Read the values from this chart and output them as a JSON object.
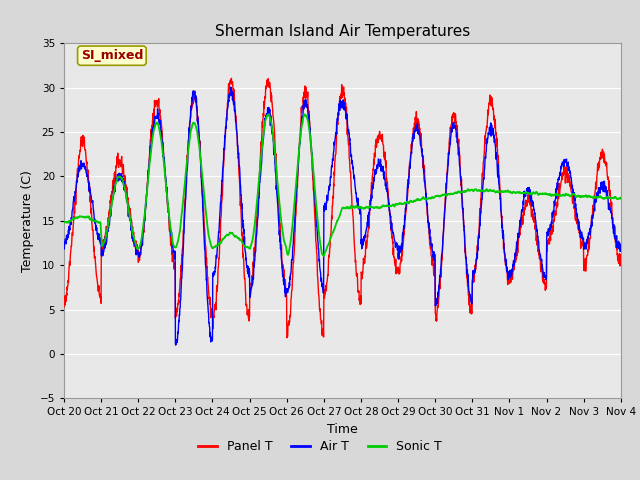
{
  "title": "Sherman Island Air Temperatures",
  "xlabel": "Time",
  "ylabel": "Temperature (C)",
  "ylim": [
    -5,
    35
  ],
  "xlim": [
    0,
    15
  ],
  "fig_bg_color": "#d8d8d8",
  "plot_bg_color": "#e8e8e8",
  "legend_bg_color": "#ffffff",
  "grid_color": "#ffffff",
  "panel_t_color": "#ff0000",
  "air_t_color": "#0000ff",
  "sonic_t_color": "#00cc00",
  "label_color": "#990000",
  "annotation_bg": "#ffffcc",
  "annotation_edge": "#999900",
  "tick_labels": [
    "Oct 20",
    "Oct 21",
    "Oct 22",
    "Oct 23",
    "Oct 24",
    "Oct 25",
    "Oct 26",
    "Oct 27",
    "Oct 28",
    "Oct 29",
    "Oct 30",
    "Oct 31",
    "Nov 1",
    "Nov 2",
    "Nov 3",
    "Nov 4"
  ],
  "annotation_text": "SI_mixed",
  "title_fontsize": 11,
  "label_fontsize": 9,
  "tick_fontsize": 7.5,
  "legend_fontsize": 9,
  "line_width": 1.0,
  "yticks": [
    -5,
    0,
    5,
    10,
    15,
    20,
    25,
    30,
    35
  ]
}
